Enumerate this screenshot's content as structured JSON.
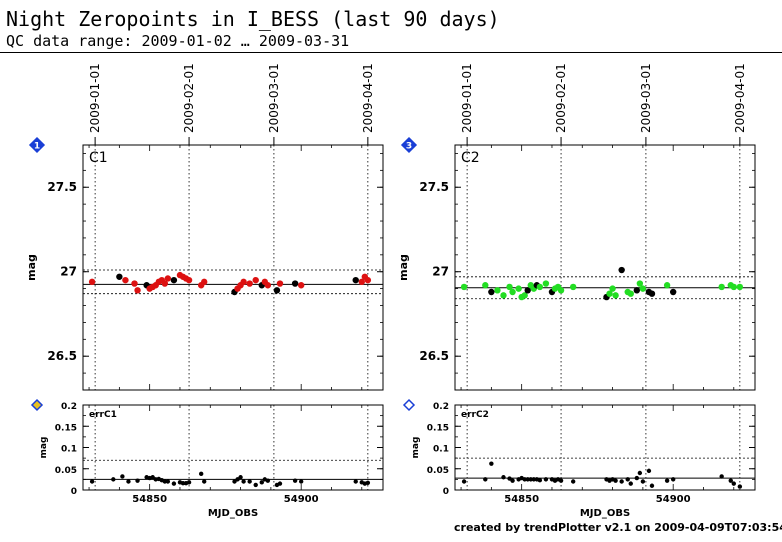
{
  "title": "Night Zeropoints in I_BESS (last 90 days)",
  "subtitle": "QC data range: 2009-01-02 … 2009-03-31",
  "footer": "created by trendPlotter v2.1 on 2009-04-09T07:03:54",
  "colors": {
    "black": "#000000",
    "red": "#dd1111",
    "green": "#22dd22",
    "marker_fill": "#1a3fd6",
    "marker_badge2": "#e8c020"
  },
  "chart_data": [
    {
      "type": "scatter",
      "panel": "main",
      "label": "C1",
      "marker_number": "1",
      "ylabel": "mag",
      "xlim": [
        54828.0,
        54927.0
      ],
      "ylim": [
        26.3,
        27.75
      ],
      "y_ticks": [
        "27.5",
        "27",
        "26.5"
      ],
      "y_tick_values": [
        27.5,
        27.0,
        26.5
      ],
      "date_ticks": [
        "2009-01-01",
        "2009-02-01",
        "2009-03-01",
        "2009-04-01"
      ],
      "date_tick_values": [
        54832,
        54863,
        54891,
        54922
      ],
      "ref_line": 26.925,
      "limit_lines": [
        26.87,
        27.01
      ],
      "points": [
        {
          "x": 54831,
          "y": 26.94,
          "c": "red"
        },
        {
          "x": 54840,
          "y": 26.97,
          "c": "black"
        },
        {
          "x": 54842,
          "y": 26.95,
          "c": "red"
        },
        {
          "x": 54845,
          "y": 26.93,
          "c": "red"
        },
        {
          "x": 54846,
          "y": 26.89,
          "c": "red"
        },
        {
          "x": 54849,
          "y": 26.92,
          "c": "black"
        },
        {
          "x": 54850,
          "y": 26.9,
          "c": "red"
        },
        {
          "x": 54851,
          "y": 26.91,
          "c": "red"
        },
        {
          "x": 54852,
          "y": 26.92,
          "c": "red"
        },
        {
          "x": 54853,
          "y": 26.94,
          "c": "red"
        },
        {
          "x": 54854,
          "y": 26.95,
          "c": "red"
        },
        {
          "x": 54855,
          "y": 26.93,
          "c": "red"
        },
        {
          "x": 54856,
          "y": 26.96,
          "c": "red"
        },
        {
          "x": 54858,
          "y": 26.95,
          "c": "black"
        },
        {
          "x": 54860,
          "y": 26.98,
          "c": "red"
        },
        {
          "x": 54861,
          "y": 26.97,
          "c": "red"
        },
        {
          "x": 54862,
          "y": 26.96,
          "c": "red"
        },
        {
          "x": 54863,
          "y": 26.95,
          "c": "red"
        },
        {
          "x": 54867,
          "y": 26.92,
          "c": "red"
        },
        {
          "x": 54868,
          "y": 26.94,
          "c": "red"
        },
        {
          "x": 54878,
          "y": 26.88,
          "c": "black"
        },
        {
          "x": 54879,
          "y": 26.9,
          "c": "red"
        },
        {
          "x": 54880,
          "y": 26.92,
          "c": "red"
        },
        {
          "x": 54881,
          "y": 26.94,
          "c": "red"
        },
        {
          "x": 54883,
          "y": 26.93,
          "c": "red"
        },
        {
          "x": 54885,
          "y": 26.95,
          "c": "red"
        },
        {
          "x": 54887,
          "y": 26.92,
          "c": "black"
        },
        {
          "x": 54888,
          "y": 26.94,
          "c": "red"
        },
        {
          "x": 54889,
          "y": 26.92,
          "c": "red"
        },
        {
          "x": 54892,
          "y": 26.89,
          "c": "black"
        },
        {
          "x": 54893,
          "y": 26.93,
          "c": "red"
        },
        {
          "x": 54898,
          "y": 26.93,
          "c": "black"
        },
        {
          "x": 54900,
          "y": 26.92,
          "c": "red"
        },
        {
          "x": 54918,
          "y": 26.95,
          "c": "black"
        },
        {
          "x": 54920,
          "y": 26.94,
          "c": "red"
        },
        {
          "x": 54921,
          "y": 26.97,
          "c": "red"
        },
        {
          "x": 54922,
          "y": 26.95,
          "c": "red"
        }
      ]
    },
    {
      "type": "scatter",
      "panel": "error",
      "label": "errC1",
      "ylabel": "mag",
      "xlabel": "MJD_OBS",
      "xlim": [
        54828.0,
        54927.0
      ],
      "ylim": [
        0,
        0.2
      ],
      "y_ticks": [
        "0.2",
        "0.15",
        "0.1",
        "0.05",
        "0"
      ],
      "y_tick_values": [
        0.2,
        0.15,
        0.1,
        0.05,
        0
      ],
      "x_ticks": [
        "54850",
        "54900"
      ],
      "x_tick_values": [
        54850,
        54900
      ],
      "date_tick_values": [
        54832,
        54863,
        54891,
        54922
      ],
      "ref_line": 0.025,
      "limit_lines": [
        0.07
      ],
      "points": [
        {
          "x": 54831,
          "y": 0.02
        },
        {
          "x": 54838,
          "y": 0.025
        },
        {
          "x": 54841,
          "y": 0.032
        },
        {
          "x": 54843,
          "y": 0.02
        },
        {
          "x": 54846,
          "y": 0.022
        },
        {
          "x": 54849,
          "y": 0.03
        },
        {
          "x": 54850,
          "y": 0.028
        },
        {
          "x": 54851,
          "y": 0.03
        },
        {
          "x": 54852,
          "y": 0.025
        },
        {
          "x": 54853,
          "y": 0.026
        },
        {
          "x": 54854,
          "y": 0.023
        },
        {
          "x": 54855,
          "y": 0.02
        },
        {
          "x": 54856,
          "y": 0.02
        },
        {
          "x": 54858,
          "y": 0.015
        },
        {
          "x": 54860,
          "y": 0.018
        },
        {
          "x": 54861,
          "y": 0.016
        },
        {
          "x": 54862,
          "y": 0.016
        },
        {
          "x": 54863,
          "y": 0.018
        },
        {
          "x": 54867,
          "y": 0.038
        },
        {
          "x": 54868,
          "y": 0.02
        },
        {
          "x": 54878,
          "y": 0.02
        },
        {
          "x": 54879,
          "y": 0.025
        },
        {
          "x": 54880,
          "y": 0.03
        },
        {
          "x": 54881,
          "y": 0.02
        },
        {
          "x": 54883,
          "y": 0.02
        },
        {
          "x": 54885,
          "y": 0.012
        },
        {
          "x": 54887,
          "y": 0.018
        },
        {
          "x": 54888,
          "y": 0.025
        },
        {
          "x": 54889,
          "y": 0.022
        },
        {
          "x": 54892,
          "y": 0.012
        },
        {
          "x": 54893,
          "y": 0.015
        },
        {
          "x": 54898,
          "y": 0.022
        },
        {
          "x": 54900,
          "y": 0.02
        },
        {
          "x": 54918,
          "y": 0.02
        },
        {
          "x": 54920,
          "y": 0.018
        },
        {
          "x": 54921,
          "y": 0.015
        },
        {
          "x": 54922,
          "y": 0.017
        }
      ]
    },
    {
      "type": "scatter",
      "panel": "main",
      "label": "C2",
      "marker_number": "3",
      "ylabel": "mag",
      "xlim": [
        54828.0,
        54927.0
      ],
      "ylim": [
        26.3,
        27.75
      ],
      "y_ticks": [
        "27.5",
        "27",
        "26.5"
      ],
      "y_tick_values": [
        27.5,
        27.0,
        26.5
      ],
      "date_ticks": [
        "2009-01-01",
        "2009-02-01",
        "2009-03-01",
        "2009-04-01"
      ],
      "date_tick_values": [
        54832,
        54863,
        54891,
        54922
      ],
      "ref_line": 26.905,
      "limit_lines": [
        26.84,
        26.97
      ],
      "points": [
        {
          "x": 54831,
          "y": 26.91,
          "c": "green"
        },
        {
          "x": 54838,
          "y": 26.92,
          "c": "green"
        },
        {
          "x": 54840,
          "y": 26.88,
          "c": "black"
        },
        {
          "x": 54842,
          "y": 26.89,
          "c": "green"
        },
        {
          "x": 54844,
          "y": 26.86,
          "c": "green"
        },
        {
          "x": 54846,
          "y": 26.91,
          "c": "green"
        },
        {
          "x": 54847,
          "y": 26.88,
          "c": "green"
        },
        {
          "x": 54849,
          "y": 26.9,
          "c": "green"
        },
        {
          "x": 54850,
          "y": 26.85,
          "c": "green"
        },
        {
          "x": 54851,
          "y": 26.86,
          "c": "green"
        },
        {
          "x": 54852,
          "y": 26.89,
          "c": "black"
        },
        {
          "x": 54853,
          "y": 26.92,
          "c": "green"
        },
        {
          "x": 54854,
          "y": 26.9,
          "c": "green"
        },
        {
          "x": 54855,
          "y": 26.92,
          "c": "black"
        },
        {
          "x": 54856,
          "y": 26.91,
          "c": "green"
        },
        {
          "x": 54858,
          "y": 26.93,
          "c": "green"
        },
        {
          "x": 54860,
          "y": 26.88,
          "c": "black"
        },
        {
          "x": 54861,
          "y": 26.9,
          "c": "green"
        },
        {
          "x": 54862,
          "y": 26.91,
          "c": "green"
        },
        {
          "x": 54863,
          "y": 26.89,
          "c": "green"
        },
        {
          "x": 54867,
          "y": 26.91,
          "c": "green"
        },
        {
          "x": 54878,
          "y": 26.85,
          "c": "black"
        },
        {
          "x": 54879,
          "y": 26.87,
          "c": "green"
        },
        {
          "x": 54880,
          "y": 26.9,
          "c": "green"
        },
        {
          "x": 54881,
          "y": 26.86,
          "c": "green"
        },
        {
          "x": 54883,
          "y": 27.01,
          "c": "black"
        },
        {
          "x": 54885,
          "y": 26.88,
          "c": "green"
        },
        {
          "x": 54886,
          "y": 26.87,
          "c": "green"
        },
        {
          "x": 54888,
          "y": 26.89,
          "c": "black"
        },
        {
          "x": 54889,
          "y": 26.93,
          "c": "green"
        },
        {
          "x": 54890,
          "y": 26.9,
          "c": "green"
        },
        {
          "x": 54892,
          "y": 26.88,
          "c": "black"
        },
        {
          "x": 54893,
          "y": 26.87,
          "c": "black"
        },
        {
          "x": 54898,
          "y": 26.92,
          "c": "green"
        },
        {
          "x": 54900,
          "y": 26.88,
          "c": "black"
        },
        {
          "x": 54916,
          "y": 26.91,
          "c": "green"
        },
        {
          "x": 54919,
          "y": 26.92,
          "c": "green"
        },
        {
          "x": 54920,
          "y": 26.91,
          "c": "green"
        },
        {
          "x": 54922,
          "y": 26.91,
          "c": "green"
        }
      ]
    },
    {
      "type": "scatter",
      "panel": "error",
      "label": "errC2",
      "ylabel": "mag",
      "xlabel": "MJD_OBS",
      "xlim": [
        54828.0,
        54927.0
      ],
      "ylim": [
        0,
        0.2
      ],
      "y_ticks": [
        "0.2",
        "0.15",
        "0.1",
        "0.05",
        "0"
      ],
      "y_tick_values": [
        0.2,
        0.15,
        0.1,
        0.05,
        0
      ],
      "x_ticks": [
        "54850",
        "54900"
      ],
      "x_tick_values": [
        54850,
        54900
      ],
      "date_tick_values": [
        54832,
        54863,
        54891,
        54922
      ],
      "ref_line": 0.028,
      "limit_lines": [
        0.075
      ],
      "points": [
        {
          "x": 54831,
          "y": 0.02
        },
        {
          "x": 54838,
          "y": 0.025
        },
        {
          "x": 54840,
          "y": 0.062
        },
        {
          "x": 54844,
          "y": 0.03
        },
        {
          "x": 54846,
          "y": 0.027
        },
        {
          "x": 54847,
          "y": 0.022
        },
        {
          "x": 54849,
          "y": 0.025
        },
        {
          "x": 54850,
          "y": 0.028
        },
        {
          "x": 54851,
          "y": 0.025
        },
        {
          "x": 54852,
          "y": 0.025
        },
        {
          "x": 54853,
          "y": 0.025
        },
        {
          "x": 54854,
          "y": 0.025
        },
        {
          "x": 54855,
          "y": 0.025
        },
        {
          "x": 54856,
          "y": 0.023
        },
        {
          "x": 54858,
          "y": 0.025
        },
        {
          "x": 54860,
          "y": 0.025
        },
        {
          "x": 54861,
          "y": 0.022
        },
        {
          "x": 54862,
          "y": 0.025
        },
        {
          "x": 54863,
          "y": 0.022
        },
        {
          "x": 54867,
          "y": 0.02
        },
        {
          "x": 54878,
          "y": 0.025
        },
        {
          "x": 54879,
          "y": 0.022
        },
        {
          "x": 54880,
          "y": 0.025
        },
        {
          "x": 54881,
          "y": 0.022
        },
        {
          "x": 54883,
          "y": 0.02
        },
        {
          "x": 54885,
          "y": 0.025
        },
        {
          "x": 54886,
          "y": 0.015
        },
        {
          "x": 54888,
          "y": 0.028
        },
        {
          "x": 54889,
          "y": 0.04
        },
        {
          "x": 54890,
          "y": 0.02
        },
        {
          "x": 54892,
          "y": 0.045
        },
        {
          "x": 54893,
          "y": 0.01
        },
        {
          "x": 54898,
          "y": 0.022
        },
        {
          "x": 54900,
          "y": 0.025
        },
        {
          "x": 54916,
          "y": 0.032
        },
        {
          "x": 54919,
          "y": 0.022
        },
        {
          "x": 54920,
          "y": 0.015
        },
        {
          "x": 54922,
          "y": 0.008
        }
      ]
    }
  ]
}
